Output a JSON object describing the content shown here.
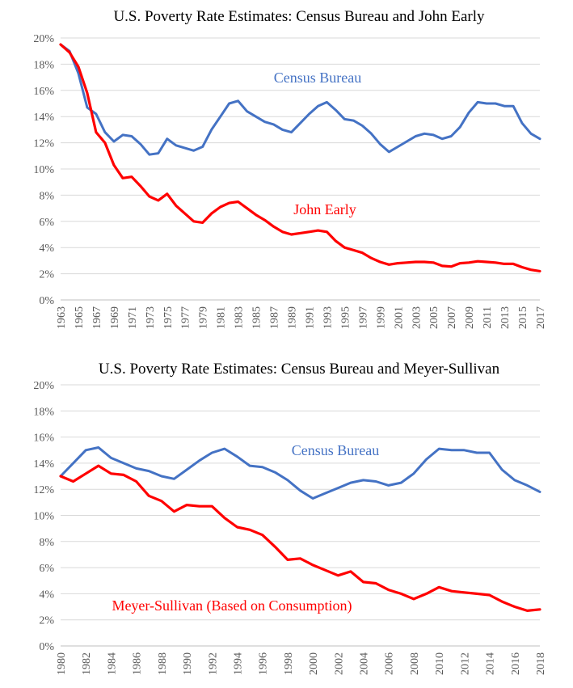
{
  "chart_data": [
    {
      "type": "line",
      "title": "U.S. Poverty Rate Estimates: Census Bureau and John Early",
      "xlabel": "",
      "ylabel": "",
      "ylim": [
        0,
        20
      ],
      "y_ticks": [
        "0%",
        "2%",
        "4%",
        "6%",
        "8%",
        "10%",
        "12%",
        "14%",
        "16%",
        "18%",
        "20%"
      ],
      "x_tick_labels": [
        "1963",
        "1965",
        "1967",
        "1969",
        "1971",
        "1973",
        "1975",
        "1977",
        "1979",
        "1981",
        "1983",
        "1985",
        "1987",
        "1989",
        "1991",
        "1993",
        "1995",
        "1997",
        "1999",
        "2001",
        "2003",
        "2005",
        "2007",
        "2009",
        "2011",
        "2013",
        "2015",
        "2017"
      ],
      "grid": "horizontal",
      "legend": "inline labels",
      "x": [
        1963,
        1964,
        1965,
        1966,
        1967,
        1968,
        1969,
        1970,
        1971,
        1972,
        1973,
        1974,
        1975,
        1976,
        1977,
        1978,
        1979,
        1980,
        1981,
        1982,
        1983,
        1984,
        1985,
        1986,
        1987,
        1988,
        1989,
        1990,
        1991,
        1992,
        1993,
        1994,
        1995,
        1996,
        1997,
        1998,
        1999,
        2000,
        2001,
        2002,
        2003,
        2004,
        2005,
        2006,
        2007,
        2008,
        2009,
        2010,
        2011,
        2012,
        2013,
        2014,
        2015,
        2016,
        2017
      ],
      "series": [
        {
          "name": "Census Bureau",
          "color": "#4472C4",
          "values": [
            19.5,
            19.0,
            17.3,
            14.7,
            14.2,
            12.8,
            12.1,
            12.6,
            12.5,
            11.9,
            11.1,
            11.2,
            12.3,
            11.8,
            11.6,
            11.4,
            11.7,
            13.0,
            14.0,
            15.0,
            15.2,
            14.4,
            14.0,
            13.6,
            13.4,
            13.0,
            12.8,
            13.5,
            14.2,
            14.8,
            15.1,
            14.5,
            13.8,
            13.7,
            13.3,
            12.7,
            11.9,
            11.3,
            11.7,
            12.1,
            12.5,
            12.7,
            12.6,
            12.3,
            12.5,
            13.2,
            14.3,
            15.1,
            15.0,
            15.0,
            14.8,
            14.8,
            13.5,
            12.7,
            12.3
          ]
        },
        {
          "name": "John Early",
          "color": "#FF0000",
          "values": [
            19.5,
            18.9,
            17.8,
            15.8,
            12.8,
            12.0,
            10.3,
            9.3,
            9.4,
            8.7,
            7.9,
            7.6,
            8.1,
            7.2,
            6.6,
            6.0,
            5.9,
            6.6,
            7.1,
            7.4,
            7.5,
            7.0,
            6.5,
            6.1,
            5.6,
            5.2,
            5.0,
            5.1,
            5.2,
            5.3,
            5.2,
            4.5,
            4.0,
            3.8,
            3.6,
            3.2,
            2.9,
            2.7,
            2.8,
            2.85,
            2.9,
            2.9,
            2.85,
            2.6,
            2.55,
            2.8,
            2.85,
            2.95,
            2.9,
            2.85,
            2.75,
            2.75,
            2.5,
            2.3,
            2.2
          ]
        }
      ]
    },
    {
      "type": "line",
      "title": "U.S. Poverty Rate Estimates: Census Bureau and Meyer-Sullivan",
      "xlabel": "",
      "ylabel": "",
      "ylim": [
        0,
        20
      ],
      "y_ticks": [
        "0%",
        "2%",
        "4%",
        "6%",
        "8%",
        "10%",
        "12%",
        "14%",
        "16%",
        "18%",
        "20%"
      ],
      "x_tick_labels": [
        "1980",
        "1982",
        "1984",
        "1986",
        "1988",
        "1990",
        "1992",
        "1994",
        "1996",
        "1998",
        "2000",
        "2002",
        "2004",
        "2006",
        "2008",
        "2010",
        "2012",
        "2014",
        "2016",
        "2018"
      ],
      "grid": "horizontal",
      "legend": "inline labels",
      "x": [
        1980,
        1981,
        1982,
        1983,
        1984,
        1985,
        1986,
        1987,
        1988,
        1989,
        1990,
        1991,
        1992,
        1993,
        1994,
        1995,
        1996,
        1997,
        1998,
        1999,
        2000,
        2001,
        2002,
        2003,
        2004,
        2005,
        2006,
        2007,
        2008,
        2009,
        2010,
        2011,
        2012,
        2013,
        2014,
        2015,
        2016,
        2017,
        2018
      ],
      "series": [
        {
          "name": "Census Bureau",
          "color": "#4472C4",
          "values": [
            13.0,
            14.0,
            15.0,
            15.2,
            14.4,
            14.0,
            13.6,
            13.4,
            13.0,
            12.8,
            13.5,
            14.2,
            14.8,
            15.1,
            14.5,
            13.8,
            13.7,
            13.3,
            12.7,
            11.9,
            11.3,
            11.7,
            12.1,
            12.5,
            12.7,
            12.6,
            12.3,
            12.5,
            13.2,
            14.3,
            15.1,
            15.0,
            15.0,
            14.8,
            14.8,
            13.5,
            12.7,
            12.3,
            11.8
          ]
        },
        {
          "name": "Meyer-Sullivan (Based on Consumption)",
          "color": "#FF0000",
          "values": [
            13.0,
            12.6,
            13.2,
            13.8,
            13.2,
            13.1,
            12.6,
            11.5,
            11.1,
            10.3,
            10.8,
            10.7,
            10.7,
            9.8,
            9.1,
            8.9,
            8.5,
            7.6,
            6.6,
            6.7,
            6.2,
            5.8,
            5.4,
            5.7,
            4.9,
            4.8,
            4.3,
            4.0,
            3.6,
            4.0,
            4.5,
            4.2,
            4.1,
            4.0,
            3.9,
            3.4,
            3.0,
            2.7,
            2.8
          ]
        }
      ]
    }
  ]
}
